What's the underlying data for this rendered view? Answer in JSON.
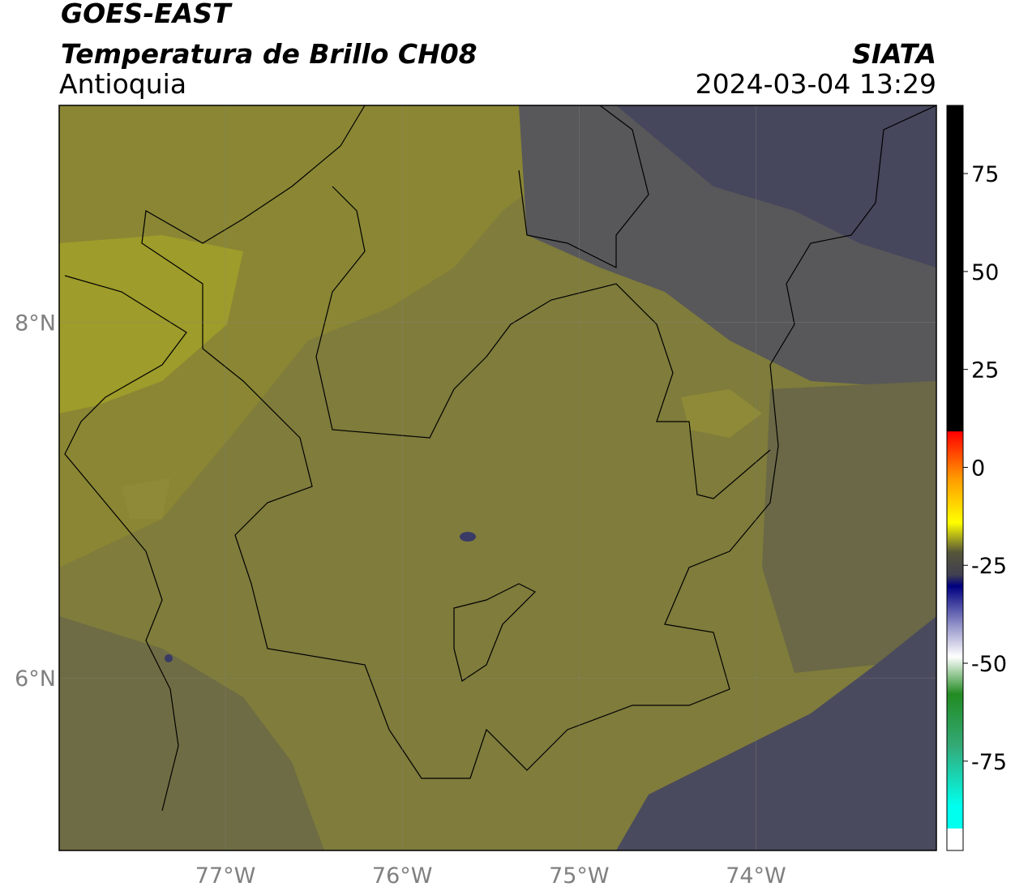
{
  "header": {
    "title": "GOES-EAST",
    "subtitle": "Temperatura de Brillo CH08",
    "region": "Antioquia",
    "source": "SIATA",
    "datetime": "2024-03-04 13:29"
  },
  "map": {
    "lon_range": [
      -77.94,
      -72.98
    ],
    "lat_range": [
      5.03,
      9.22
    ],
    "lon_ticks": [
      {
        "value": -77,
        "label": "77°W"
      },
      {
        "value": -76,
        "label": "76°W"
      },
      {
        "value": -75,
        "label": "75°W"
      },
      {
        "value": -74,
        "label": "74°W"
      }
    ],
    "lat_ticks": [
      {
        "value": 8,
        "label": "8°N"
      },
      {
        "value": 6,
        "label": "6°N"
      }
    ]
  },
  "colorbar": {
    "lim": [
      -97.8,
      92.4
    ],
    "ticks": [
      75,
      50,
      25,
      0,
      -25,
      -50,
      -75
    ]
  }
}
